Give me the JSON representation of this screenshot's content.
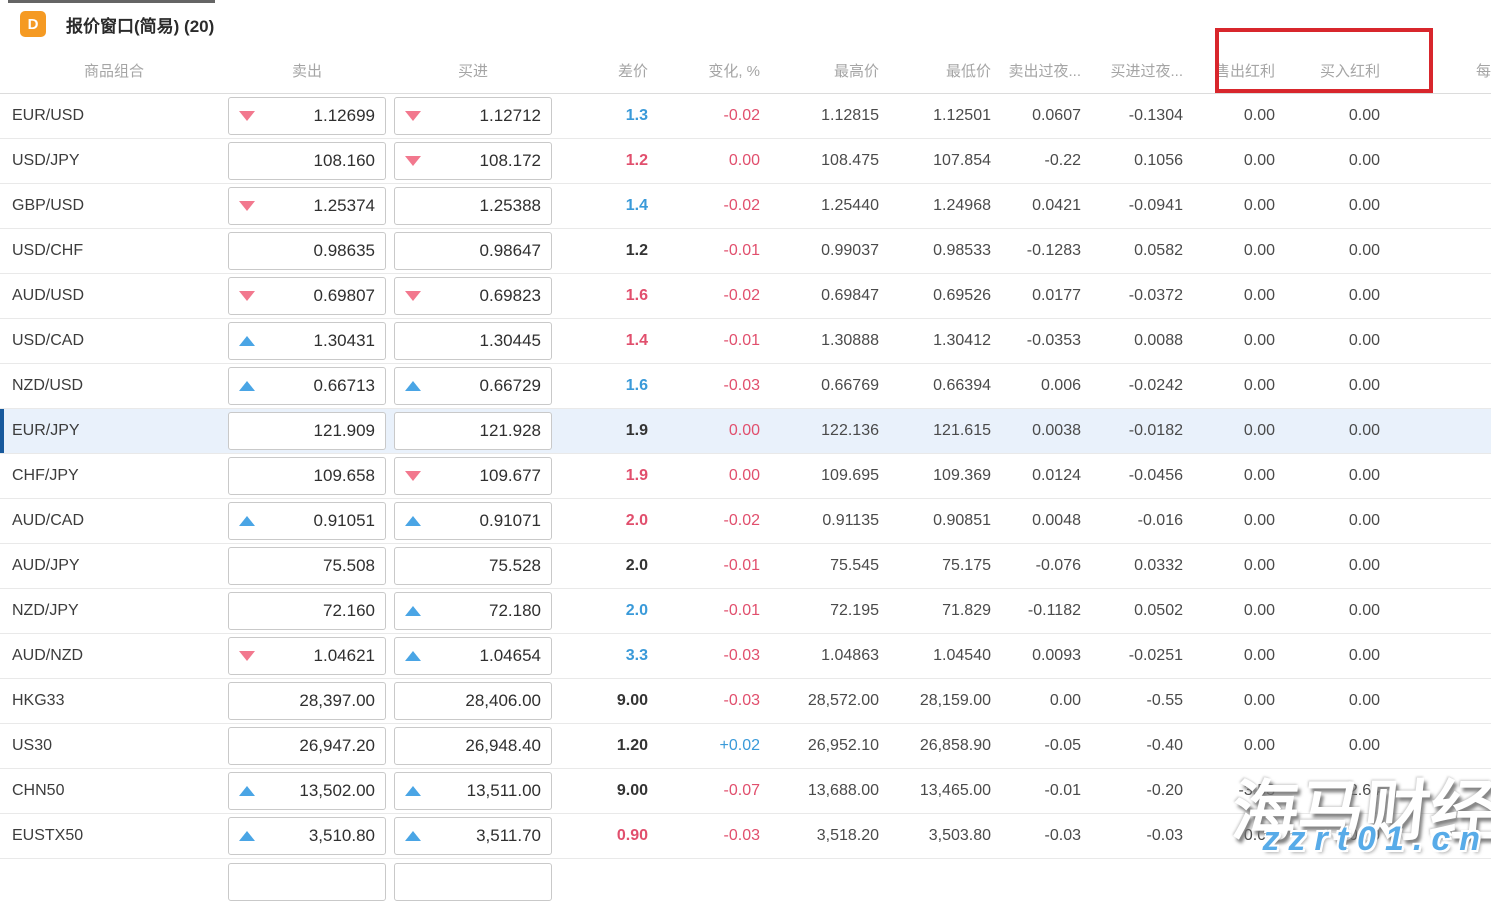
{
  "window": {
    "icon_letter": "D",
    "icon_color": "#F59A23",
    "title": "报价窗口(简易) (20)"
  },
  "columns": [
    {
      "id": "symbol",
      "label": "商品组合"
    },
    {
      "id": "sell",
      "label": "卖出"
    },
    {
      "id": "buy",
      "label": "买进"
    },
    {
      "id": "spread",
      "label": "差价"
    },
    {
      "id": "change",
      "label": "变化, %"
    },
    {
      "id": "high",
      "label": "最高价"
    },
    {
      "id": "low",
      "label": "最低价"
    },
    {
      "id": "sell_overnight",
      "label": "卖出过夜..."
    },
    {
      "id": "buy_overnight",
      "label": "买进过夜..."
    },
    {
      "id": "sell_dividend",
      "label": "售出红利"
    },
    {
      "id": "buy_dividend",
      "label": "买入红利"
    },
    {
      "id": "per",
      "label": "每"
    }
  ],
  "highlight_box": {
    "color": "#D8262C",
    "enclosed_columns": [
      "售出红利",
      "买入红利"
    ]
  },
  "watermark": {
    "line1": "海马财经",
    "line2": "zzrt01.cn",
    "line2_color": "#58abe8"
  },
  "colors": {
    "spread_up": "#3A9AD9",
    "spread_down": "#E14F6D",
    "arrow_up": "#4AA5E5",
    "arrow_down": "#F2788E",
    "selected_row_bg": "#E9F1FB",
    "selected_row_bar": "#17599C"
  },
  "table": {
    "has_partial_next_row": true,
    "rows": [
      {
        "symbol": "EUR/USD",
        "sell": "1.12699",
        "sell_arrow": "down",
        "buy": "1.12712",
        "buy_arrow": "down",
        "spread": "1.3",
        "spread_color": "blue",
        "change": "-0.02",
        "change_color": "red",
        "high": "1.12815",
        "low": "1.12501",
        "sell_overnight": "0.0607",
        "buy_overnight": "-0.1304",
        "sell_dividend": "0.00",
        "buy_dividend": "0.00",
        "selected": false
      },
      {
        "symbol": "USD/JPY",
        "sell": "108.160",
        "sell_arrow": null,
        "buy": "108.172",
        "buy_arrow": "down",
        "spread": "1.2",
        "spread_color": "red",
        "change": "0.00",
        "change_color": "red",
        "high": "108.475",
        "low": "107.854",
        "sell_overnight": "-0.22",
        "buy_overnight": "0.1056",
        "sell_dividend": "0.00",
        "buy_dividend": "0.00",
        "selected": false
      },
      {
        "symbol": "GBP/USD",
        "sell": "1.25374",
        "sell_arrow": "down",
        "buy": "1.25388",
        "buy_arrow": null,
        "spread": "1.4",
        "spread_color": "blue",
        "change": "-0.02",
        "change_color": "red",
        "high": "1.25440",
        "low": "1.24968",
        "sell_overnight": "0.0421",
        "buy_overnight": "-0.0941",
        "sell_dividend": "0.00",
        "buy_dividend": "0.00",
        "selected": false
      },
      {
        "symbol": "USD/CHF",
        "sell": "0.98635",
        "sell_arrow": null,
        "buy": "0.98647",
        "buy_arrow": null,
        "spread": "1.2",
        "spread_color": "dark",
        "change": "-0.01",
        "change_color": "red",
        "high": "0.99037",
        "low": "0.98533",
        "sell_overnight": "-0.1283",
        "buy_overnight": "0.0582",
        "sell_dividend": "0.00",
        "buy_dividend": "0.00",
        "selected": false
      },
      {
        "symbol": "AUD/USD",
        "sell": "0.69807",
        "sell_arrow": "down",
        "buy": "0.69823",
        "buy_arrow": "down",
        "spread": "1.6",
        "spread_color": "red",
        "change": "-0.02",
        "change_color": "red",
        "high": "0.69847",
        "low": "0.69526",
        "sell_overnight": "0.0177",
        "buy_overnight": "-0.0372",
        "sell_dividend": "0.00",
        "buy_dividend": "0.00",
        "selected": false
      },
      {
        "symbol": "USD/CAD",
        "sell": "1.30431",
        "sell_arrow": "up",
        "buy": "1.30445",
        "buy_arrow": null,
        "spread": "1.4",
        "spread_color": "red",
        "change": "-0.01",
        "change_color": "red",
        "high": "1.30888",
        "low": "1.30412",
        "sell_overnight": "-0.0353",
        "buy_overnight": "0.0088",
        "sell_dividend": "0.00",
        "buy_dividend": "0.00",
        "selected": false
      },
      {
        "symbol": "NZD/USD",
        "sell": "0.66713",
        "sell_arrow": "up",
        "buy": "0.66729",
        "buy_arrow": "up",
        "spread": "1.6",
        "spread_color": "blue",
        "change": "-0.03",
        "change_color": "red",
        "high": "0.66769",
        "low": "0.66394",
        "sell_overnight": "0.006",
        "buy_overnight": "-0.0242",
        "sell_dividend": "0.00",
        "buy_dividend": "0.00",
        "selected": false
      },
      {
        "symbol": "EUR/JPY",
        "sell": "121.909",
        "sell_arrow": null,
        "buy": "121.928",
        "buy_arrow": null,
        "spread": "1.9",
        "spread_color": "dark",
        "change": "0.00",
        "change_color": "red",
        "high": "122.136",
        "low": "121.615",
        "sell_overnight": "0.0038",
        "buy_overnight": "-0.0182",
        "sell_dividend": "0.00",
        "buy_dividend": "0.00",
        "selected": true
      },
      {
        "symbol": "CHF/JPY",
        "sell": "109.658",
        "sell_arrow": null,
        "buy": "109.677",
        "buy_arrow": "down",
        "spread": "1.9",
        "spread_color": "red",
        "change": "0.00",
        "change_color": "red",
        "high": "109.695",
        "low": "109.369",
        "sell_overnight": "0.0124",
        "buy_overnight": "-0.0456",
        "sell_dividend": "0.00",
        "buy_dividend": "0.00",
        "selected": false
      },
      {
        "symbol": "AUD/CAD",
        "sell": "0.91051",
        "sell_arrow": "up",
        "buy": "0.91071",
        "buy_arrow": "up",
        "spread": "2.0",
        "spread_color": "red",
        "change": "-0.02",
        "change_color": "red",
        "high": "0.91135",
        "low": "0.90851",
        "sell_overnight": "0.0048",
        "buy_overnight": "-0.016",
        "sell_dividend": "0.00",
        "buy_dividend": "0.00",
        "selected": false
      },
      {
        "symbol": "AUD/JPY",
        "sell": "75.508",
        "sell_arrow": null,
        "buy": "75.528",
        "buy_arrow": null,
        "spread": "2.0",
        "spread_color": "dark",
        "change": "-0.01",
        "change_color": "red",
        "high": "75.545",
        "low": "75.175",
        "sell_overnight": "-0.076",
        "buy_overnight": "0.0332",
        "sell_dividend": "0.00",
        "buy_dividend": "0.00",
        "selected": false
      },
      {
        "symbol": "NZD/JPY",
        "sell": "72.160",
        "sell_arrow": null,
        "buy": "72.180",
        "buy_arrow": "up",
        "spread": "2.0",
        "spread_color": "blue",
        "change": "-0.01",
        "change_color": "red",
        "high": "72.195",
        "low": "71.829",
        "sell_overnight": "-0.1182",
        "buy_overnight": "0.0502",
        "sell_dividend": "0.00",
        "buy_dividend": "0.00",
        "selected": false
      },
      {
        "symbol": "AUD/NZD",
        "sell": "1.04621",
        "sell_arrow": "down",
        "buy": "1.04654",
        "buy_arrow": "up",
        "spread": "3.3",
        "spread_color": "blue",
        "change": "-0.03",
        "change_color": "red",
        "high": "1.04863",
        "low": "1.04540",
        "sell_overnight": "0.0093",
        "buy_overnight": "-0.0251",
        "sell_dividend": "0.00",
        "buy_dividend": "0.00",
        "selected": false
      },
      {
        "symbol": "HKG33",
        "sell": "28,397.00",
        "sell_arrow": null,
        "buy": "28,406.00",
        "buy_arrow": null,
        "spread": "9.00",
        "spread_color": "dark",
        "change": "-0.03",
        "change_color": "red",
        "high": "28,572.00",
        "low": "28,159.00",
        "sell_overnight": "0.00",
        "buy_overnight": "-0.55",
        "sell_dividend": "0.00",
        "buy_dividend": "0.00",
        "selected": false
      },
      {
        "symbol": "US30",
        "sell": "26,947.20",
        "sell_arrow": null,
        "buy": "26,948.40",
        "buy_arrow": null,
        "spread": "1.20",
        "spread_color": "dark",
        "change": "+0.02",
        "change_color": "blue",
        "high": "26,952.10",
        "low": "26,858.90",
        "sell_overnight": "-0.05",
        "buy_overnight": "-0.40",
        "sell_dividend": "0.00",
        "buy_dividend": "0.00",
        "selected": false
      },
      {
        "symbol": "CHN50",
        "sell": "13,502.00",
        "sell_arrow": "up",
        "buy": "13,511.00",
        "buy_arrow": "up",
        "spread": "9.00",
        "spread_color": "dark",
        "change": "-0.07",
        "change_color": "red",
        "high": "13,688.00",
        "low": "13,465.00",
        "sell_overnight": "-0.01",
        "buy_overnight": "-0.20",
        "sell_dividend": "-3.53",
        "buy_dividend": "2.64",
        "selected": false
      },
      {
        "symbol": "EUSTX50",
        "sell": "3,510.80",
        "sell_arrow": "up",
        "buy": "3,511.70",
        "buy_arrow": "up",
        "spread": "0.90",
        "spread_color": "red",
        "change": "-0.03",
        "change_color": "red",
        "high": "3,518.20",
        "low": "3,503.80",
        "sell_overnight": "-0.03",
        "buy_overnight": "-0.03",
        "sell_dividend": "0.00",
        "buy_dividend": "0.00",
        "selected": false
      }
    ]
  }
}
